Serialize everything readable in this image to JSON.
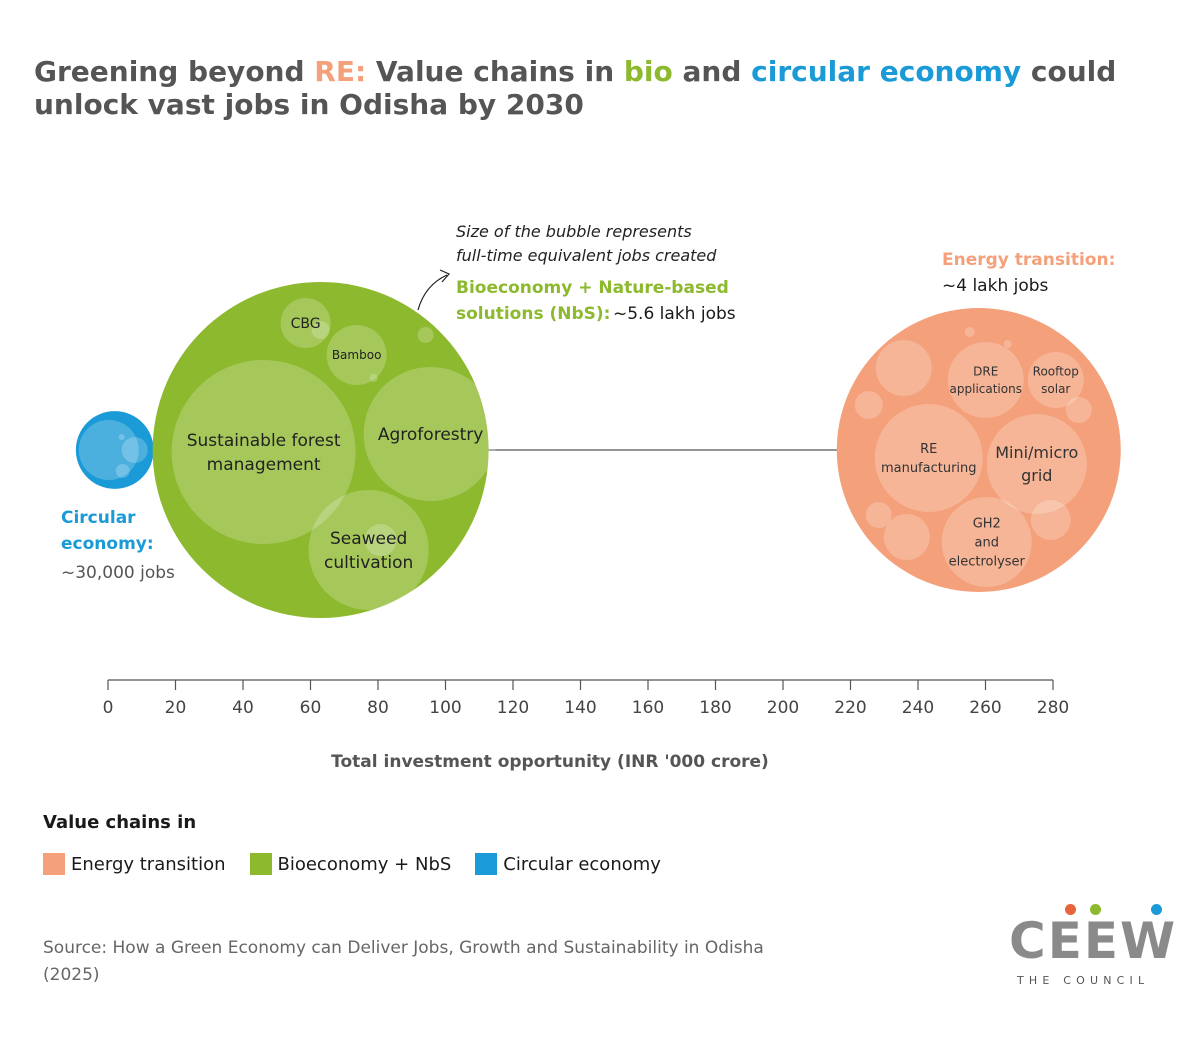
{
  "title": {
    "parts": [
      {
        "text": "Greening beyond ",
        "color": "#555555"
      },
      {
        "text": "RE:",
        "color": "#F4A07A"
      },
      {
        "text": " Value chains in ",
        "color": "#555555"
      },
      {
        "text": "bio",
        "color": "#8DB92E"
      },
      {
        "text": " and ",
        "color": "#555555"
      },
      {
        "text": "circular economy",
        "color": "#1A9AD6"
      },
      {
        "text": " could unlock vast jobs in Odisha by 2030",
        "color": "#555555"
      }
    ]
  },
  "annotation": {
    "lines": [
      "Size of the bubble represents",
      "full-time equivalent jobs created"
    ]
  },
  "chart_data": {
    "type": "bubble",
    "xlabel": "Total investment opportunity (INR '000 crore)",
    "xlim": [
      0,
      280
    ],
    "xticks": [
      0,
      20,
      40,
      60,
      80,
      100,
      120,
      140,
      160,
      180,
      200,
      220,
      240,
      260,
      280
    ],
    "size_represents": "full-time equivalent jobs created",
    "series": [
      {
        "name": "Circular economy",
        "color": "#1A9AD6",
        "label_lines": [
          "Circular",
          "economy:"
        ],
        "jobs_label": "~30,000 jobs",
        "jobs": 30000,
        "x": 2,
        "sub_bubbles": []
      },
      {
        "name": "Bioeconomy + Nature-based solutions (NbS)",
        "color": "#8DB92E",
        "label_lines": [
          "Bioeconomy + Nature-based",
          "solutions (NbS):"
        ],
        "jobs_label": "~5.6 lakh jobs",
        "jobs": 560000,
        "x": 63,
        "sub_bubbles": [
          {
            "label_lines": [
              "Sustainable forest",
              "management"
            ]
          },
          {
            "label_lines": [
              "Agroforestry"
            ]
          },
          {
            "label_lines": [
              "Seaweed",
              "cultivation"
            ]
          },
          {
            "label_lines": [
              "CBG"
            ]
          },
          {
            "label_lines": [
              "Bamboo"
            ]
          }
        ]
      },
      {
        "name": "Energy transition",
        "color": "#F4A07A",
        "label_lines": [
          "Energy transition:"
        ],
        "jobs_label": "~4 lakh jobs",
        "jobs": 400000,
        "x": 258,
        "sub_bubbles": [
          {
            "label_lines": [
              "DRE",
              "applications"
            ]
          },
          {
            "label_lines": [
              "Rooftop",
              "solar"
            ]
          },
          {
            "label_lines": [
              "RE",
              "manufacturing"
            ]
          },
          {
            "label_lines": [
              "Mini/micro",
              "grid"
            ]
          },
          {
            "label_lines": [
              "GH2",
              "and",
              "electrolyser"
            ]
          }
        ]
      }
    ]
  },
  "legend": {
    "title": "Value chains in",
    "items": [
      {
        "label": "Energy transition",
        "color": "#F4A07A"
      },
      {
        "label": "Bioeconomy + NbS",
        "color": "#8DB92E"
      },
      {
        "label": "Circular economy",
        "color": "#1A9AD6"
      }
    ]
  },
  "source": "Source: How a Green Economy can Deliver Jobs, Growth and Sustainability in Odisha (2025)",
  "logo": {
    "wordmark": "CEEW",
    "tagline": "THE COUNCIL",
    "dot_colors": [
      "#E8643A",
      "#8DB92E",
      "#1A9AD6"
    ]
  }
}
